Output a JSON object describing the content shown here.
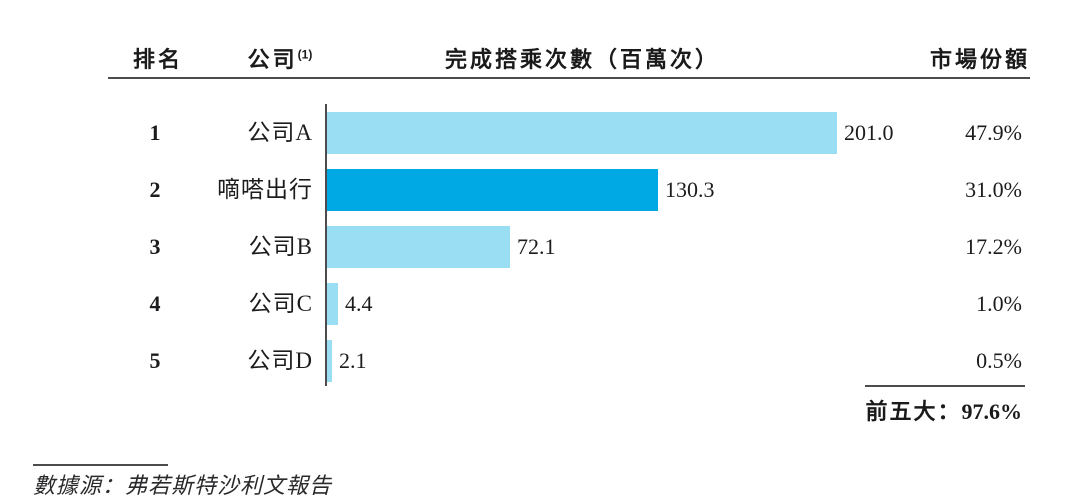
{
  "table": {
    "headers": {
      "rank": "排名",
      "company": "公司",
      "company_footnote_marker": "(1)",
      "rides": "完成搭乘次數（百萬次）",
      "share": "市場份額"
    }
  },
  "chart_data": {
    "type": "bar",
    "orientation": "horizontal",
    "title": "完成搭乘次數（百萬次）",
    "xlabel": "完成搭乘次數（百萬次）",
    "xlim": [
      0,
      210
    ],
    "grid": false,
    "categories": [
      "公司A",
      "嘀嗒出行",
      "公司B",
      "公司C",
      "公司D"
    ],
    "values": [
      201.0,
      130.3,
      72.1,
      4.4,
      2.1
    ],
    "colors": {
      "bar_default": "#9ADEF4",
      "bar_highlight": "#00A9E3",
      "axis_line": "#4C4C4E"
    },
    "rows": [
      {
        "rank": "1",
        "company": "公司A",
        "value": 201.0,
        "value_label": "201.0",
        "share": "47.9%",
        "highlight": false
      },
      {
        "rank": "2",
        "company": "嘀嗒出行",
        "value": 130.3,
        "value_label": "130.3",
        "share": "31.0%",
        "highlight": true
      },
      {
        "rank": "3",
        "company": "公司B",
        "value": 72.1,
        "value_label": "72.1",
        "share": "17.2%",
        "highlight": false
      },
      {
        "rank": "4",
        "company": "公司C",
        "value": 4.4,
        "value_label": "4.4",
        "share": "1.0%",
        "highlight": false
      },
      {
        "rank": "5",
        "company": "公司D",
        "value": 2.1,
        "value_label": "2.1",
        "share": "0.5%",
        "highlight": false
      }
    ]
  },
  "summary": {
    "label": "前五大：",
    "value": "97.6%"
  },
  "footnote": {
    "source": "數據源：弗若斯特沙利文報告"
  }
}
